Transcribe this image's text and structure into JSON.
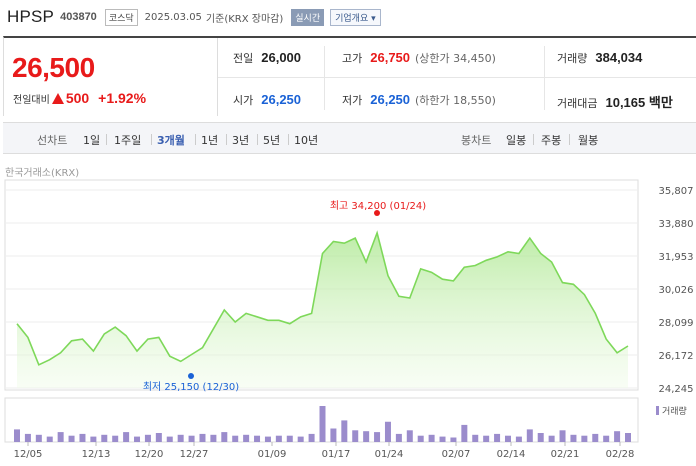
{
  "header": {
    "name": "HPSP",
    "code": "403870",
    "market": "코스닥",
    "date": "2025.03.05",
    "basis": "기준(KRX 장마감)",
    "live_label": "실시간",
    "corp_label": "기업개요 ▾"
  },
  "quote": {
    "price": "26,500",
    "change_label": "전일대비",
    "change_amount": "500",
    "change_pct": "+1.92%",
    "prev_label": "전일",
    "prev": "26,000",
    "high_label": "고가",
    "high": "26,750",
    "upper_limit": "(상한가 34,450)",
    "volume_label": "거래량",
    "volume": "384,034",
    "open_label": "시가",
    "open": "26,250",
    "low_label": "저가",
    "low": "26,250",
    "lower_limit": "(하한가 18,550)",
    "amount_label": "거래대금",
    "amount": "10,165 백만"
  },
  "tabs": {
    "line_label": "선차트",
    "periods": [
      "1일",
      "1주일",
      "3개월",
      "1년",
      "3년",
      "5년",
      "10년"
    ],
    "active": "3개월",
    "candle_label": "봉차트",
    "candles": [
      "일봉",
      "주봉",
      "월봉"
    ]
  },
  "chart_data": {
    "type": "area",
    "source_label": "한국거래소(KRX)",
    "y_ticks": [
      "35,807",
      "33,880",
      "31,953",
      "30,026",
      "28,099",
      "26,172",
      "24,245"
    ],
    "ylim": [
      24245,
      35807
    ],
    "x_ticks": [
      "12/05",
      "12/13",
      "12/20",
      "12/27",
      "01/09",
      "01/17",
      "01/24",
      "02/07",
      "02/14",
      "02/21",
      "02/28"
    ],
    "high_annotation": "최고 34,200 (01/24)",
    "low_annotation": "최저 25,150 (12/30)",
    "volume_label": "거래량",
    "price_series": [
      28000,
      27200,
      25600,
      25900,
      26300,
      27000,
      27100,
      26400,
      27400,
      27800,
      27300,
      26400,
      27100,
      27200,
      26100,
      25800,
      26200,
      26600,
      27700,
      28800,
      28100,
      28600,
      28400,
      28200,
      28200,
      28000,
      28400,
      28600,
      32100,
      32800,
      32700,
      33000,
      31600,
      33300,
      30800,
      29600,
      29500,
      31200,
      31000,
      30600,
      30500,
      31300,
      31400,
      31700,
      31900,
      32200,
      32100,
      33000,
      32100,
      31600,
      30400,
      30300,
      29700,
      28600,
      27100,
      26300,
      26700
    ],
    "volume_series": [
      28,
      18,
      16,
      12,
      22,
      14,
      18,
      12,
      16,
      14,
      22,
      12,
      16,
      20,
      12,
      16,
      14,
      18,
      16,
      22,
      14,
      16,
      14,
      12,
      14,
      14,
      12,
      18,
      80,
      30,
      48,
      26,
      24,
      22,
      45,
      18,
      26,
      14,
      16,
      12,
      10,
      38,
      16,
      14,
      18,
      14,
      12,
      28,
      20,
      14,
      26,
      16,
      14,
      18,
      14,
      24,
      20
    ]
  }
}
